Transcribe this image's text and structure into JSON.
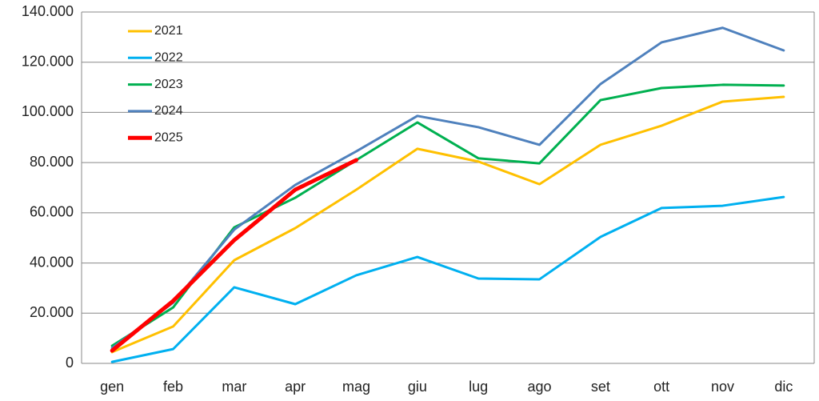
{
  "chart_data": {
    "type": "line",
    "categories": [
      "gen",
      "feb",
      "mar",
      "apr",
      "mag",
      "giu",
      "lug",
      "ago",
      "set",
      "ott",
      "nov",
      "dic"
    ],
    "series": [
      {
        "name": "2021",
        "color": "#ffc000",
        "values": [
          4500,
          14700,
          41100,
          53900,
          69200,
          85500,
          80400,
          71400,
          87100,
          94700,
          104300,
          106200
        ]
      },
      {
        "name": "2022",
        "color": "#00b0f0",
        "values": [
          600,
          5700,
          30300,
          23600,
          35100,
          42400,
          33800,
          33500,
          50400,
          61900,
          62800,
          66300
        ]
      },
      {
        "name": "2023",
        "color": "#00b050",
        "values": [
          7000,
          22300,
          54200,
          66000,
          81000,
          96000,
          81700,
          79700,
          104900,
          109700,
          111000,
          110700
        ]
      },
      {
        "name": "2024",
        "color": "#4f81bd",
        "values": [
          6100,
          24200,
          53300,
          71100,
          84500,
          98600,
          94100,
          87100,
          111300,
          127900,
          133700,
          124700
        ]
      },
      {
        "name": "2025",
        "color": "#ff0000",
        "values": [
          5100,
          24900,
          49100,
          69200,
          81000,
          null,
          null,
          null,
          null,
          null,
          null,
          null
        ]
      }
    ],
    "ylim": [
      0,
      140000
    ],
    "yticks": [
      0,
      {
        "value": 20000,
        "label": "20.000"
      },
      {
        "value": 40000,
        "label": "40.000"
      },
      {
        "value": 60000,
        "label": "60.000"
      },
      {
        "value": 80000,
        "label": "80.000"
      },
      {
        "value": 100000,
        "label": "100.000"
      },
      {
        "value": 120000,
        "label": "120.000"
      },
      {
        "value": 140000,
        "label": "140.000"
      }
    ],
    "grid": true,
    "legend": "upper left"
  }
}
